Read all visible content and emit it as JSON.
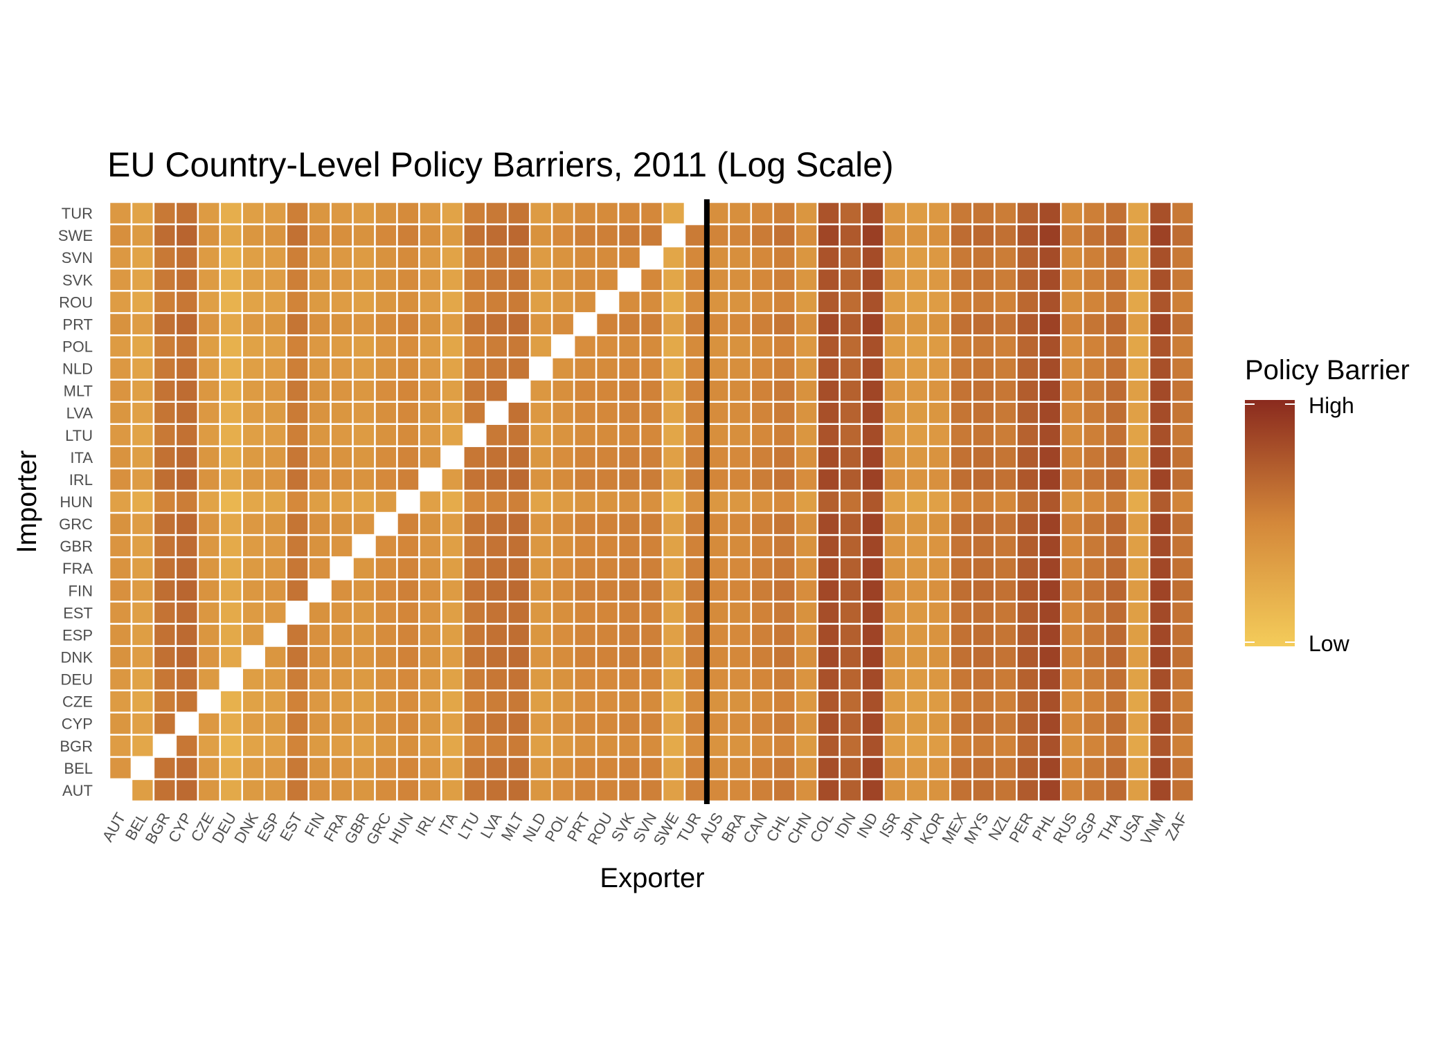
{
  "chart_data": {
    "type": "heatmap",
    "title": "EU Country-Level Policy Barriers, 2011 (Log Scale)",
    "xlabel": "Exporter",
    "ylabel": "Importer",
    "x": [
      "AUT",
      "BEL",
      "BGR",
      "CYP",
      "CZE",
      "DEU",
      "DNK",
      "ESP",
      "EST",
      "FIN",
      "FRA",
      "GBR",
      "GRC",
      "HUN",
      "IRL",
      "ITA",
      "LTU",
      "LVA",
      "MLT",
      "NLD",
      "POL",
      "PRT",
      "ROU",
      "SVK",
      "SVN",
      "SWE",
      "TUR",
      "AUS",
      "BRA",
      "CAN",
      "CHL",
      "CHN",
      "COL",
      "IDN",
      "IND",
      "ISR",
      "JPN",
      "KOR",
      "MEX",
      "MYS",
      "NZL",
      "PER",
      "PHL",
      "RUS",
      "SGP",
      "THA",
      "USA",
      "VNM",
      "ZAF"
    ],
    "y": [
      "AUT",
      "BEL",
      "BGR",
      "CYP",
      "CZE",
      "DEU",
      "DNK",
      "ESP",
      "EST",
      "FIN",
      "FRA",
      "GBR",
      "GRC",
      "HUN",
      "IRL",
      "ITA",
      "LTU",
      "LVA",
      "MLT",
      "NLD",
      "POL",
      "PRT",
      "ROU",
      "SVK",
      "SVN",
      "SWE",
      "TUR"
    ],
    "value_scale": "0 = Low, 1 = High (relative, log scale)",
    "note": "Cell values are approximate relative levels estimated from the colour scale; the diagonal (importer = exporter) is empty.",
    "exporter_level": [
      0.38,
      0.3,
      0.58,
      0.62,
      0.36,
      0.22,
      0.33,
      0.35,
      0.55,
      0.4,
      0.38,
      0.36,
      0.43,
      0.48,
      0.38,
      0.3,
      0.55,
      0.58,
      0.6,
      0.36,
      0.42,
      0.48,
      0.48,
      0.5,
      0.5,
      0.28,
      0.5,
      0.45,
      0.45,
      0.5,
      0.55,
      0.4,
      0.78,
      0.68,
      0.82,
      0.38,
      0.35,
      0.38,
      0.58,
      0.6,
      0.56,
      0.7,
      0.82,
      0.48,
      0.55,
      0.62,
      0.3,
      0.8,
      0.58
    ],
    "importer_level": [
      0.04,
      0.03,
      -0.03,
      0.02,
      -0.02,
      0.01,
      0.05,
      0.04,
      0.03,
      0.06,
      0.04,
      0.03,
      0.05,
      -0.06,
      0.06,
      0.04,
      0.0,
      0.02,
      0.03,
      0.0,
      -0.02,
      0.05,
      -0.03,
      0.0,
      0.0,
      0.07,
      0.0
    ],
    "values_rule": "value[importer][exporter] = clamp(exporter_level + importer_level) with null on the diagonal",
    "legend": {
      "title": "Policy Barrier",
      "high_label": "High",
      "low_label": "Low",
      "placement": "right"
    },
    "divider_after": "TUR",
    "colors": {
      "low": "#f4cc5a",
      "mid": "#d4883a",
      "high": "#8a2a1e",
      "divider": "#000000",
      "grid": "#ffffff"
    }
  }
}
